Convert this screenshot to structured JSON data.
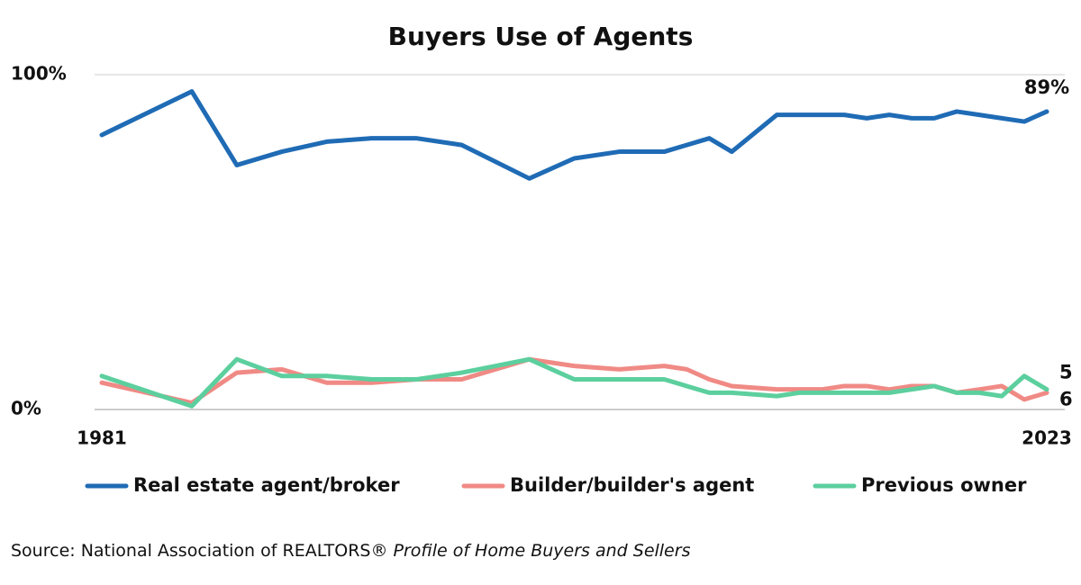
{
  "chart_data": {
    "type": "line",
    "title": "Buyers Use of Agents",
    "source": "Source: National Association of REALTORS® ",
    "source_title": "Profile of Home Buyers and Sellers",
    "x": [
      1981,
      1985,
      1987,
      1989,
      1991,
      1993,
      1995,
      1997,
      2000,
      2002,
      2004,
      2006,
      2007,
      2008,
      2009,
      2011,
      2012,
      2013,
      2014,
      2015,
      2016,
      2017,
      2018,
      2019,
      2020,
      2021,
      2022,
      2023
    ],
    "xlim": [
      1981,
      2023
    ],
    "xticks": [
      1981,
      2023
    ],
    "ylim": [
      0,
      100
    ],
    "yticks": [
      {
        "value": 0,
        "label": "0%"
      },
      {
        "value": 100,
        "label": "100%"
      }
    ],
    "grid": true,
    "legend": "bottom",
    "series": [
      {
        "name": "Real estate agent/broker",
        "color": "#1f6bb5",
        "values": [
          82,
          95,
          73,
          77,
          80,
          81,
          81,
          79,
          69,
          75,
          77,
          77,
          79,
          81,
          77,
          88,
          88,
          88,
          88,
          87,
          88,
          87,
          87,
          89,
          88,
          87,
          86,
          89
        ],
        "value_labels": [
          null,
          null,
          null,
          null,
          null,
          null,
          null,
          null,
          null,
          null,
          null,
          null,
          null,
          null,
          null,
          null,
          null,
          null,
          null,
          null,
          null,
          null,
          null,
          null,
          null,
          null,
          null,
          "89%"
        ]
      },
      {
        "name": "Builder/builder's agent",
        "color": "#f08a85",
        "values": [
          8,
          2,
          11,
          12,
          8,
          8,
          9,
          9,
          15,
          13,
          12,
          13,
          12,
          9,
          7,
          6,
          6,
          6,
          7,
          7,
          6,
          7,
          7,
          5,
          6,
          7,
          3,
          5
        ]
      },
      {
        "name": "Previous owner",
        "color": "#5ccf9e",
        "values": [
          10,
          1,
          15,
          10,
          10,
          9,
          9,
          11,
          15,
          9,
          9,
          9,
          7,
          5,
          5,
          4,
          5,
          5,
          5,
          5,
          5,
          6,
          7,
          5,
          5,
          4,
          10,
          6
        ]
      }
    ]
  }
}
